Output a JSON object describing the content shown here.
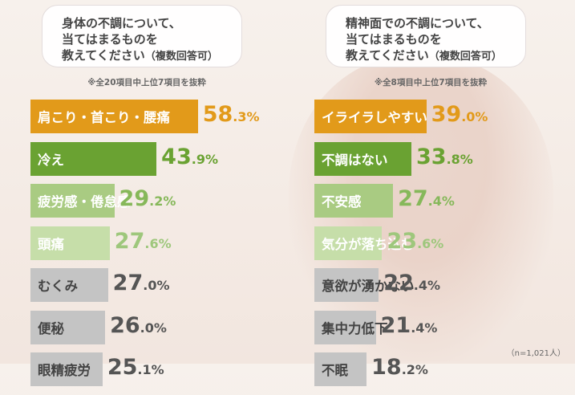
{
  "chart_data": [
    {
      "type": "bar",
      "title": "身体の不調について、当てはまるものを教えてください（複数回答可）",
      "note": "※全20項目中上位7項目を抜粋",
      "categories": [
        "肩こり・首こり・腰痛",
        "冷え",
        "疲労感・倦怠感",
        "頭痛",
        "むくみ",
        "便秘",
        "眼精疲労"
      ],
      "values": [
        58.3,
        43.9,
        29.2,
        27.6,
        27.0,
        26.0,
        25.1
      ],
      "unit": "%"
    },
    {
      "type": "bar",
      "title": "精神面での不調について、当てはまるものを教えてください（複数回答可）",
      "note": "※全8項目中上位7項目を抜粋",
      "categories": [
        "イライラしやすい",
        "不調はない",
        "不安感",
        "気分が落ち込む",
        "意欲が湧かない",
        "集中力低下",
        "不眠"
      ],
      "values": [
        39.0,
        33.8,
        27.4,
        23.6,
        22.4,
        21.4,
        18.2
      ],
      "unit": "%"
    }
  ],
  "questions": {
    "left": {
      "line1": "身体の不調について、",
      "line2": "当てはまるものを",
      "line3": "教えてください",
      "suffix": "（複数回答可）"
    },
    "right": {
      "line1": "精神面での不調について、",
      "line2": "当てはまるものを",
      "line3": "教えてください",
      "suffix": "（複数回答可）"
    }
  },
  "footnote": "（n=1,021人）",
  "colors": {
    "orange": "#e29a1a",
    "green": "#6aa232",
    "lightgreen": "#a9cb82",
    "palegreen": "#c6dea9",
    "gray": "#c4c4c4"
  },
  "rank_styles": [
    {
      "bg": "orange",
      "text": "#ffffff",
      "pct": "#e29a1a"
    },
    {
      "bg": "green",
      "text": "#ffffff",
      "pct": "#6aa232"
    },
    {
      "bg": "lightgreen",
      "text": "#ffffff",
      "pct": "#86b85a"
    },
    {
      "bg": "palegreen",
      "text": "#ffffff",
      "pct": "#9ec77c"
    },
    {
      "bg": "gray",
      "text": "#444444",
      "pct": "#555555"
    },
    {
      "bg": "gray",
      "text": "#444444",
      "pct": "#555555"
    },
    {
      "bg": "gray",
      "text": "#444444",
      "pct": "#555555"
    }
  ]
}
